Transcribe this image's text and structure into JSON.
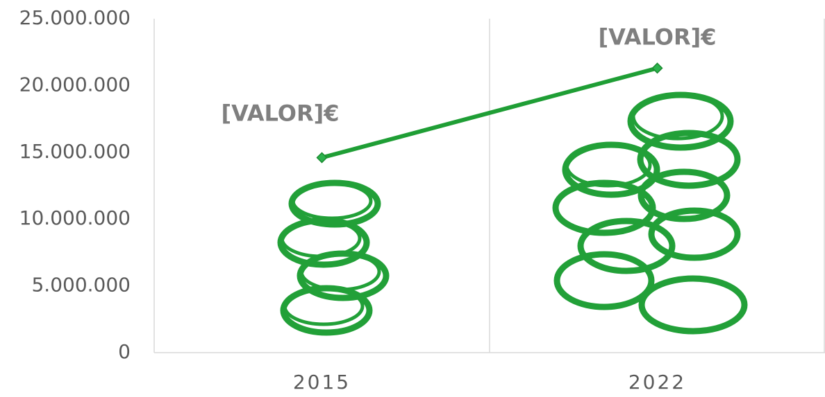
{
  "chart_data": {
    "type": "line",
    "categories": [
      "2015",
      "2022"
    ],
    "values": [
      14600000,
      21300000
    ],
    "value_labels": [
      "[VALOR]€",
      "[VALOR]€"
    ],
    "color": "#1f9e35",
    "ylim": [
      0,
      25000000
    ],
    "yticks": [
      0,
      {
        "value": 5000000,
        "label": "5.000.000"
      },
      {
        "value": 10000000,
        "label": "10.000.000"
      },
      {
        "value": 15000000,
        "label": "15.000.000"
      },
      {
        "value": 20000000,
        "label": "20.000.000"
      },
      {
        "value": 25000000,
        "label": "25.000.000"
      }
    ]
  }
}
